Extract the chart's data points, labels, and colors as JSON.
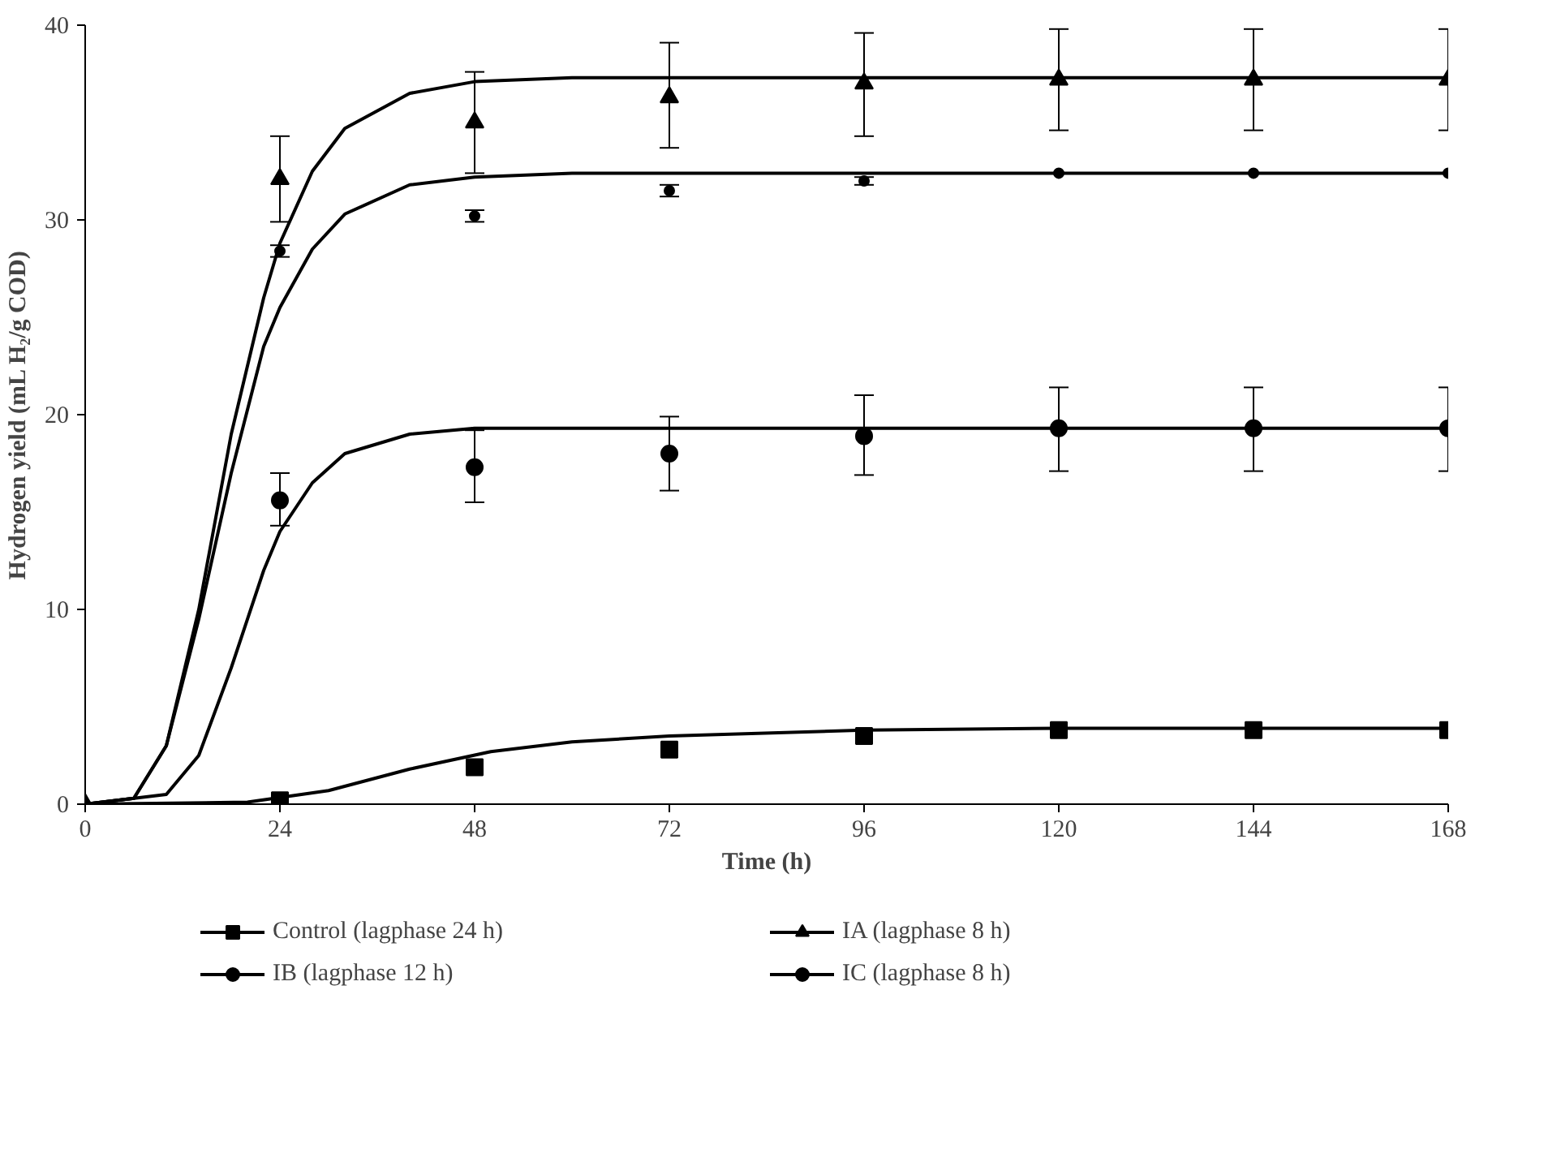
{
  "chart_data": {
    "type": "scatter",
    "xlabel": "Time (h)",
    "ylabel": "Hydrogen yield (mL H₂/g COD)",
    "xlim": [
      0,
      168
    ],
    "ylim": [
      0,
      40
    ],
    "xticks": [
      0,
      24,
      48,
      72,
      96,
      120,
      144,
      168
    ],
    "yticks": [
      0,
      10,
      20,
      30,
      40
    ],
    "grid": false,
    "legend": "bottom",
    "series": [
      {
        "name": "Control (lagphase 24 h)",
        "marker": "square",
        "color": "#000000",
        "x": [
          24,
          48,
          72,
          96,
          120,
          144,
          168
        ],
        "values": [
          0.2,
          1.9,
          2.8,
          3.5,
          3.8,
          3.8,
          3.8
        ]
      },
      {
        "name": "IA (lagphase 8 h)",
        "marker": "triangle",
        "color": "#000000",
        "x": [
          0,
          24,
          48,
          72,
          96,
          120,
          144,
          168
        ],
        "values": [
          0,
          32.1,
          35,
          36.3,
          37,
          37.2,
          37.2,
          37.2
        ],
        "errors": [
          null,
          [
            29.9,
            34.3
          ],
          [
            32.4,
            37.6
          ],
          [
            33.7,
            39.1
          ],
          [
            34.3,
            39.6
          ],
          [
            34.6,
            39.8
          ],
          [
            34.6,
            39.8
          ],
          [
            34.6,
            39.8
          ]
        ]
      },
      {
        "name": "IB (lagphase 12 h)",
        "marker": "circle",
        "color": "#000000",
        "x": [
          24,
          48,
          72,
          96,
          120,
          144,
          168
        ],
        "values": [
          15.6,
          17.3,
          18,
          18.9,
          19.3,
          19.3,
          19.3
        ],
        "errors": [
          [
            14.3,
            17
          ],
          [
            15.5,
            19.2
          ],
          [
            16.1,
            19.9
          ],
          [
            16.9,
            21
          ],
          [
            17.1,
            21.4
          ],
          [
            17.1,
            21.4
          ],
          [
            17.1,
            21.4
          ]
        ]
      },
      {
        "name": "IC (lagphase 8 h)",
        "marker": "dot",
        "color": "#000000",
        "x": [
          24,
          48,
          72,
          96,
          120,
          144,
          168
        ],
        "values": [
          28.4,
          30.2,
          31.5,
          32,
          32.4,
          32.4,
          32.4
        ],
        "errors": [
          0.3,
          0.3,
          0.3,
          0.2,
          null,
          null,
          null
        ]
      },
      {
        "type": "line",
        "color": "#000000",
        "x": [
          0,
          20,
          30,
          40,
          50,
          60,
          72,
          96,
          120,
          168
        ],
        "values": [
          0,
          0.1,
          0.7,
          1.8,
          2.7,
          3.2,
          3.5,
          3.8,
          3.9,
          3.9
        ]
      },
      {
        "type": "line",
        "color": "#000000",
        "x": [
          0,
          6,
          10,
          14,
          18,
          22,
          24,
          28,
          32,
          40,
          48,
          60,
          168
        ],
        "values": [
          0,
          0.3,
          3,
          10,
          19,
          26,
          28.8,
          32.5,
          34.7,
          36.5,
          37.1,
          37.3,
          37.3
        ]
      },
      {
        "type": "line",
        "color": "#000000",
        "x": [
          0,
          10,
          14,
          18,
          22,
          24,
          28,
          32,
          40,
          48,
          168
        ],
        "values": [
          0,
          0.5,
          2.5,
          7,
          12,
          14,
          16.5,
          18,
          19,
          19.3,
          19.3
        ]
      },
      {
        "type": "line",
        "color": "#000000",
        "x": [
          0,
          6,
          10,
          14,
          18,
          22,
          24,
          28,
          32,
          40,
          48,
          60,
          168
        ],
        "values": [
          0,
          0.3,
          3,
          9.5,
          17,
          23.5,
          25.5,
          28.5,
          30.3,
          31.8,
          32.2,
          32.4,
          32.4
        ]
      }
    ]
  }
}
